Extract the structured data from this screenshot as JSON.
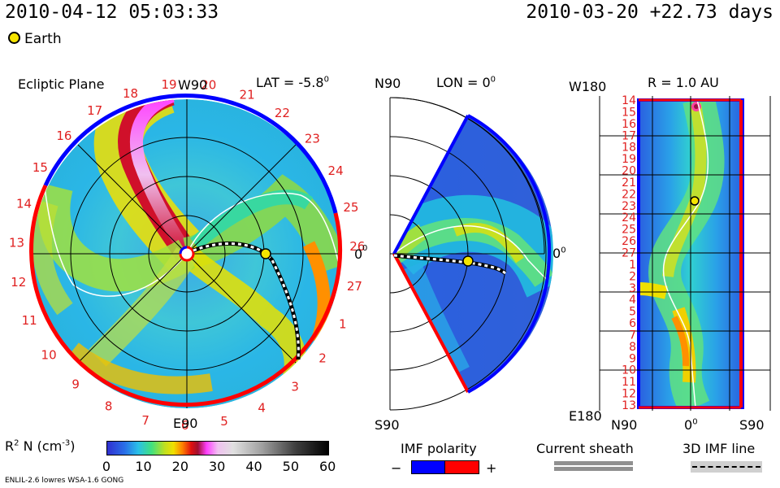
{
  "header": {
    "datetime": "2010-04-12 05:03:33",
    "reference": "2010-03-20 +22.73 days",
    "legend_earth": "Earth"
  },
  "colors": {
    "earth": "#f5e400",
    "polarity_negative": "#0000ff",
    "polarity_positive": "#ff0000",
    "tick_numbers": "#e02020",
    "sheath": "#909090"
  },
  "panels": {
    "ecliptic": {
      "title": "Ecliptic Plane",
      "lat_label": "LAT = -5.8",
      "lat_sup": "0",
      "top_label": "W90",
      "bottom_label": "E90",
      "right_label": "0",
      "right_sup": "0",
      "carrington_numbers": [
        "13",
        "14",
        "15",
        "16",
        "17",
        "18",
        "19",
        "20",
        "21",
        "22",
        "23",
        "24",
        "25",
        "26",
        "27",
        "1",
        "2",
        "3",
        "4",
        "5",
        "6",
        "7",
        "8",
        "9",
        "10",
        "11",
        "12"
      ]
    },
    "meridional": {
      "top_label": "N90",
      "bottom_label": "S90",
      "lon_label": "LON = 0",
      "lon_sup": "0",
      "right_label": "0",
      "right_sup": "0"
    },
    "radial": {
      "title": "R = 1.0 AU",
      "top_label": "W180",
      "bottom_label": "E180",
      "x_labels": [
        "N90",
        "0",
        "S90"
      ],
      "x_label_sup": "0",
      "y_numbers": [
        "14",
        "15",
        "16",
        "17",
        "18",
        "19",
        "20",
        "21",
        "22",
        "23",
        "24",
        "25",
        "26",
        "27",
        "1",
        "2",
        "3",
        "4",
        "5",
        "6",
        "7",
        "8",
        "9",
        "10",
        "11",
        "12",
        "13"
      ]
    }
  },
  "colorbar": {
    "label": "R",
    "label_sup": "2",
    "label_rest": "N (cm",
    "label_exp": "-3",
    "label_close": ")",
    "ticks": [
      "0",
      "10",
      "20",
      "30",
      "40",
      "50",
      "60"
    ],
    "range": [
      0,
      60
    ]
  },
  "legends": {
    "imf_polarity": "IMF polarity",
    "minus": "−",
    "plus": "+",
    "current_sheath": "Current sheath",
    "imf_line": "3D IMF line"
  },
  "footer": {
    "model": "ENLIL-2.6 lowres WSA-1.6 GONG"
  },
  "chart_data": [
    {
      "type": "heatmap",
      "title": "Ecliptic Plane",
      "subtitle": "LAT = -5.8°",
      "quantity": "R2 N (cm-3)",
      "color_range": [
        0,
        60
      ],
      "earth_position": {
        "longitude_deg": 0,
        "r_au": 1.0
      }
    },
    {
      "type": "heatmap",
      "subtitle": "LON = 0°",
      "quantity": "R2 N (cm-3)",
      "latitude_range": [
        "N90",
        "S90"
      ],
      "color_range": [
        0,
        60
      ]
    },
    {
      "type": "heatmap",
      "title": "R = 1.0 AU",
      "quantity": "R2 N (cm-3)",
      "x_range": [
        "N90",
        "S90"
      ],
      "y_range": [
        "W180",
        "E180"
      ],
      "color_range": [
        0,
        60
      ]
    }
  ]
}
